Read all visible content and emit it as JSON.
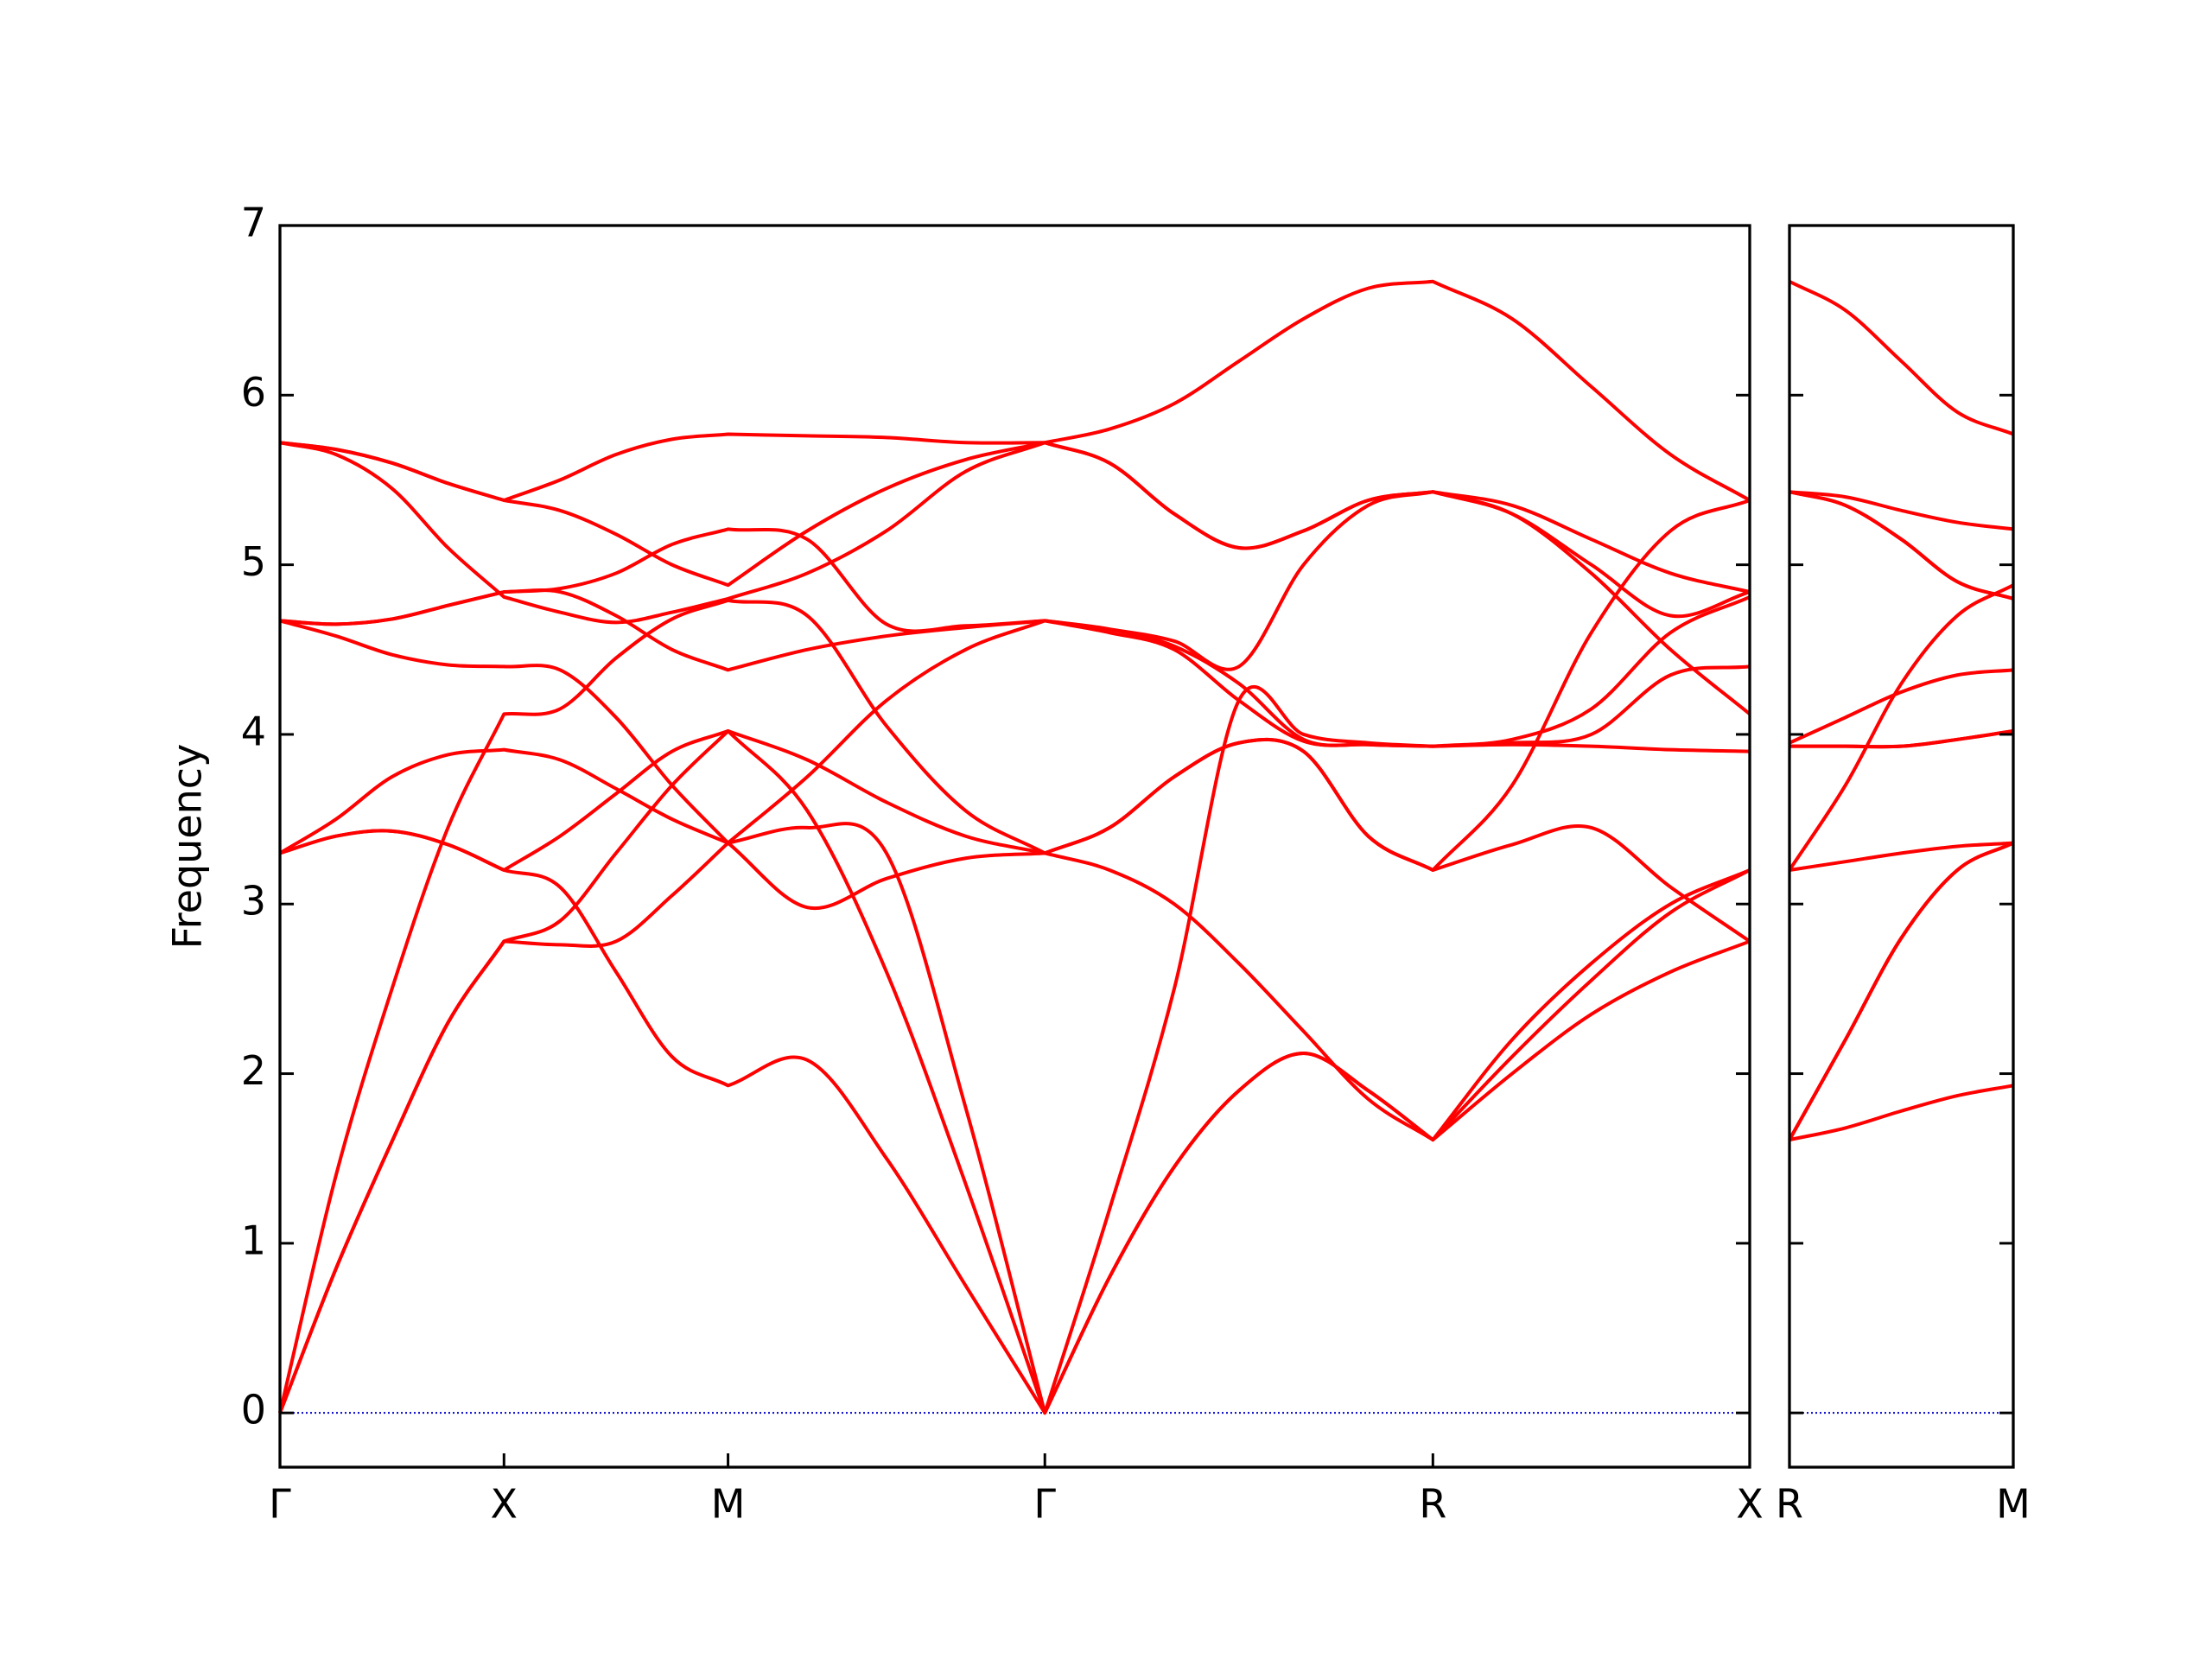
{
  "chart_data": [
    {
      "type": "line",
      "ylabel": "Frequency",
      "x": [
        0,
        0.125,
        0.25,
        0.375,
        0.5,
        0.625,
        0.75,
        0.875,
        1.0,
        1.1768,
        1.3536,
        1.5303,
        1.7071,
        1.8514,
        1.9958,
        2.1401,
        2.2844,
        2.4288,
        2.5731,
        2.7499,
        2.9267,
        3.1034,
        3.2802
      ],
      "xlim": [
        0,
        3.2802
      ],
      "xticks": [
        {
          "value": 0,
          "label": "Γ"
        },
        {
          "value": 0.5,
          "label": "X"
        },
        {
          "value": 1.0,
          "label": "M"
        },
        {
          "value": 1.7071,
          "label": "Γ"
        },
        {
          "value": 2.5731,
          "label": "R"
        },
        {
          "value": 3.2802,
          "label": "X"
        }
      ],
      "ylim": [
        -0.32,
        7
      ],
      "yticks": [
        0,
        1,
        2,
        3,
        4,
        5,
        6,
        7
      ],
      "zero_line": {
        "value": 0,
        "color": "#0000cc"
      },
      "series": [
        {
          "color": "#ff0000",
          "values": [
            0,
            0.85,
            1.6,
            2.3,
            2.78,
            2.76,
            2.78,
            3.05,
            3.36,
            2.98,
            3.15,
            3.27,
            3.3,
            3.2,
            3.0,
            2.65,
            2.25,
            1.85,
            1.61,
            2.0,
            2.35,
            2.6,
            2.78
          ]
        },
        {
          "color": "#ff0000",
          "values": [
            0,
            0.85,
            1.6,
            2.3,
            2.78,
            2.9,
            3.3,
            3.7,
            4.02,
            3.55,
            2.6,
            1.35,
            0,
            1.2,
            2.5,
            4.2,
            4.0,
            3.95,
            3.93,
            3.94,
            3.93,
            3.91,
            3.9
          ]
        },
        {
          "color": "#ff0000",
          "values": [
            0,
            1.4,
            2.5,
            3.45,
            4.12,
            4.15,
            4.45,
            4.68,
            4.79,
            4.7,
            4.05,
            3.55,
            3.3,
            3.45,
            3.75,
            3.95,
            3.9,
            3.4,
            3.2,
            3.7,
            4.6,
            5.2,
            5.38
          ]
        },
        {
          "color": "#ff0000",
          "values": [
            3.3,
            3.4,
            3.43,
            3.35,
            3.2,
            3.1,
            2.6,
            2.1,
            1.93,
            2.08,
            1.5,
            0.75,
            0,
            0.8,
            1.45,
            1.9,
            2.12,
            1.9,
            1.61,
            2.1,
            2.55,
            2.95,
            3.2
          ]
        },
        {
          "color": "#ff0000",
          "values": [
            3.3,
            3.4,
            3.43,
            3.35,
            3.2,
            3.4,
            3.65,
            3.9,
            4.02,
            3.85,
            3.6,
            3.4,
            3.3,
            3.45,
            3.75,
            3.95,
            3.9,
            3.4,
            3.2,
            3.35,
            3.45,
            3.1,
            2.78
          ]
        },
        {
          "color": "#ff0000",
          "values": [
            3.3,
            3.5,
            3.75,
            3.88,
            3.91,
            3.85,
            3.68,
            3.5,
            3.36,
            3.45,
            3.3,
            1.8,
            0,
            0.8,
            1.45,
            1.9,
            2.12,
            1.9,
            1.61,
            2.2,
            2.65,
            3.0,
            3.2
          ]
        },
        {
          "color": "#ff0000",
          "values": [
            4.67,
            4.58,
            4.47,
            4.41,
            4.4,
            4.38,
            4.1,
            3.7,
            3.36,
            3.75,
            4.2,
            4.5,
            4.67,
            4.62,
            4.55,
            4.4,
            5.0,
            5.35,
            5.43,
            5.35,
            5.15,
            4.95,
            4.84
          ]
        },
        {
          "color": "#ff0000",
          "values": [
            4.67,
            4.65,
            4.68,
            4.76,
            4.84,
            4.84,
            4.7,
            4.5,
            4.38,
            4.5,
            4.58,
            4.63,
            4.67,
            4.62,
            4.52,
            4.3,
            3.97,
            3.94,
            3.93,
            3.95,
            4.0,
            4.35,
            4.4
          ]
        },
        {
          "color": "#ff0000",
          "values": [
            4.67,
            4.65,
            4.68,
            4.76,
            4.84,
            4.86,
            4.95,
            5.12,
            5.21,
            5.15,
            4.65,
            4.64,
            4.67,
            4.6,
            4.5,
            4.2,
            3.96,
            3.94,
            3.93,
            3.97,
            4.15,
            4.6,
            4.81
          ]
        },
        {
          "color": "#ff0000",
          "values": [
            5.72,
            5.65,
            5.45,
            5.1,
            4.81,
            4.72,
            4.66,
            4.72,
            4.8,
            4.95,
            5.2,
            5.55,
            5.72,
            5.6,
            5.3,
            5.1,
            5.2,
            5.38,
            5.43,
            5.3,
            5.0,
            4.7,
            4.84
          ]
        },
        {
          "color": "#ff0000",
          "values": [
            5.72,
            5.68,
            5.6,
            5.48,
            5.38,
            5.5,
            5.65,
            5.74,
            5.77,
            5.76,
            5.75,
            5.72,
            5.72,
            5.8,
            5.95,
            6.2,
            6.45,
            6.63,
            6.67,
            6.45,
            6.05,
            5.65,
            5.38
          ]
        },
        {
          "color": "#ff0000",
          "values": [
            5.72,
            5.68,
            5.6,
            5.48,
            5.38,
            5.32,
            5.18,
            5.0,
            4.88,
            5.2,
            5.45,
            5.62,
            5.72,
            5.6,
            5.3,
            5.1,
            5.2,
            5.38,
            5.43,
            5.3,
            4.95,
            4.5,
            4.12
          ]
        }
      ]
    },
    {
      "type": "line",
      "x": [
        0,
        0.125,
        0.25,
        0.375,
        0.5
      ],
      "xlim": [
        0,
        0.5
      ],
      "xticks": [
        {
          "value": 0,
          "label": "R"
        },
        {
          "value": 0.5,
          "label": "M"
        }
      ],
      "ylim": [
        -0.32,
        7
      ],
      "yticks": [
        0,
        1,
        2,
        3,
        4,
        5,
        6,
        7
      ],
      "ytick_labels": false,
      "zero_line": {
        "value": 0,
        "color": "#0000cc"
      },
      "series": [
        {
          "color": "#ff0000",
          "values": [
            1.61,
            1.68,
            1.78,
            1.87,
            1.93
          ]
        },
        {
          "color": "#ff0000",
          "values": [
            1.61,
            2.2,
            2.8,
            3.2,
            3.36
          ]
        },
        {
          "color": "#ff0000",
          "values": [
            1.61,
            2.2,
            2.8,
            3.2,
            3.36
          ]
        },
        {
          "color": "#ff0000",
          "values": [
            3.2,
            3.25,
            3.3,
            3.34,
            3.36
          ]
        },
        {
          "color": "#ff0000",
          "values": [
            3.2,
            3.7,
            4.3,
            4.7,
            4.88
          ]
        },
        {
          "color": "#ff0000",
          "values": [
            3.93,
            3.93,
            3.93,
            3.97,
            4.02
          ]
        },
        {
          "color": "#ff0000",
          "values": [
            3.93,
            3.93,
            3.93,
            3.97,
            4.02
          ]
        },
        {
          "color": "#ff0000",
          "values": [
            3.95,
            4.1,
            4.25,
            4.35,
            4.38
          ]
        },
        {
          "color": "#ff0000",
          "values": [
            5.43,
            5.4,
            5.32,
            5.25,
            5.21
          ]
        },
        {
          "color": "#ff0000",
          "values": [
            5.43,
            5.35,
            5.15,
            4.9,
            4.8
          ]
        },
        {
          "color": "#ff0000",
          "values": [
            5.43,
            5.35,
            5.15,
            4.9,
            4.8
          ]
        },
        {
          "color": "#ff0000",
          "values": [
            6.67,
            6.5,
            6.2,
            5.9,
            5.77
          ]
        }
      ]
    }
  ]
}
